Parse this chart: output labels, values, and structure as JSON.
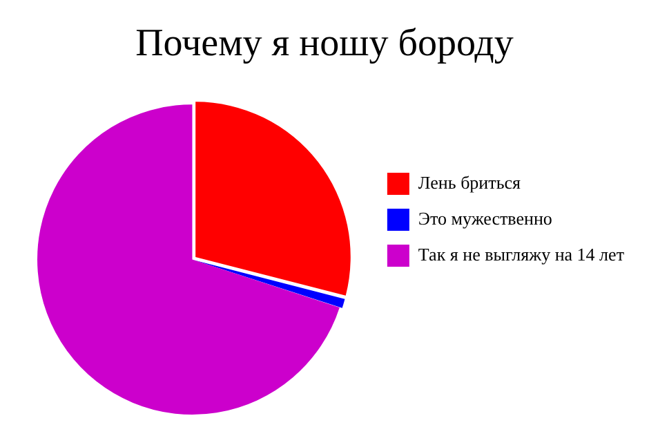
{
  "chart_data": {
    "type": "pie",
    "title": "Почему я ношу бороду",
    "categories": [
      "Лень бриться",
      "Это мужественно",
      "Так я не выгляжу на 14 лет"
    ],
    "values": [
      29,
      1,
      70
    ],
    "colors": [
      "#ff0000",
      "#0000ff",
      "#cc00cc"
    ],
    "legend": "right"
  }
}
